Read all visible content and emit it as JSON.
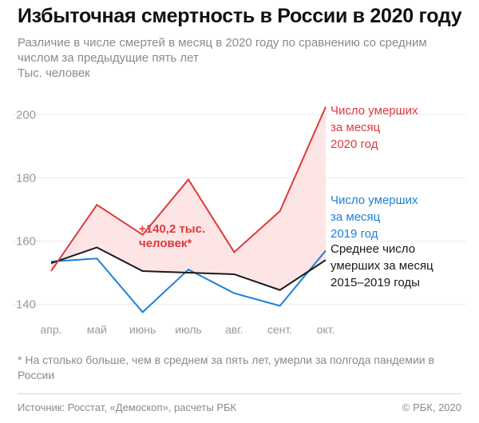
{
  "header": {
    "title": "Избыточная смертность в России в 2020 году",
    "subtitle": "Различие в числе смертей в месяц в 2020 году по сравнению со средним числом за предыдущие пять лет",
    "units": "Тыс. человек"
  },
  "chart_data": {
    "type": "line",
    "categories": [
      "апр.",
      "май",
      "июнь",
      "июль",
      "авг.",
      "сент.",
      "окт."
    ],
    "ylim": [
      130,
      210
    ],
    "yticks": [
      140,
      160,
      180,
      200
    ],
    "series": [
      {
        "name": "Число умерших за месяц 2020 год",
        "label_lines": [
          "Число умерших",
          "за месяц",
          "2020 год"
        ],
        "color": "#e0383c",
        "values": [
          150.5,
          171.5,
          162,
          179.5,
          156.5,
          169.5,
          202.5
        ]
      },
      {
        "name": "Число умерших за месяц 2019 год",
        "label_lines": [
          "Число умерших",
          "за месяц",
          "2019 год"
        ],
        "color": "#1e7fd6",
        "values": [
          153.5,
          154.5,
          137.5,
          151,
          143.5,
          139.5,
          157
        ]
      },
      {
        "name": "Среднее число умерших за месяц 2015–2019 годы",
        "label_lines": [
          "Среднее число",
          "умерших за месяц",
          "2015–2019 годы"
        ],
        "color": "#1a1a1a",
        "values": [
          153,
          158,
          150.5,
          150,
          149.5,
          144.5,
          154
        ]
      }
    ],
    "fill": {
      "color": "#fde5e5",
      "between": [
        "2020",
        "average"
      ]
    },
    "annotation": {
      "lines": [
        "+140,2 тыс.",
        "человек*"
      ],
      "color": "#e0383c"
    }
  },
  "footer": {
    "footnote": "* На столько больше, чем в среднем за пять лет, умерли за полгода пандемии в России",
    "source": "Источник: Росстат, «Демоскоп», расчеты РБК",
    "copyright": "© РБК, 2020"
  }
}
